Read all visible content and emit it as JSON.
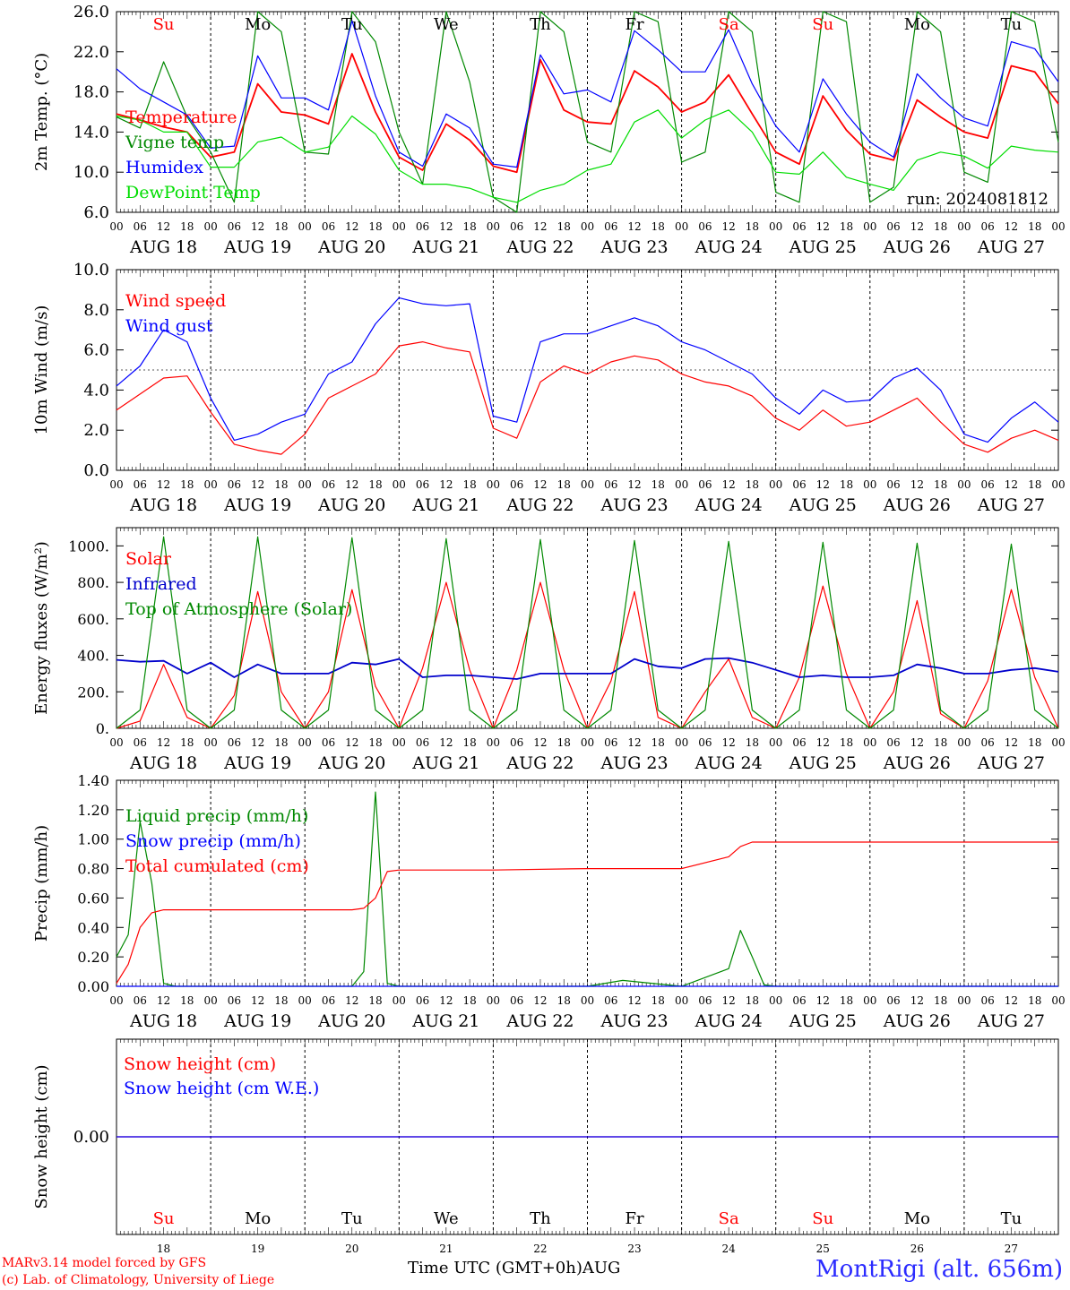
{
  "chart_data": [
    {
      "type": "line",
      "ylabel": "2m Temp. (°C)",
      "ylim": [
        6,
        26
      ],
      "yticks": [
        "6.0",
        "10.0",
        "14.0",
        "18.0",
        "22.0",
        "26.0"
      ],
      "legend": [
        "Temperature",
        "Vigne temp",
        "Humidex",
        "DewPoint Temp"
      ],
      "note": "run: 2024081812",
      "x_hours": [
        0,
        6,
        12,
        18,
        24,
        30,
        36,
        42,
        48,
        54,
        60,
        66,
        72,
        78,
        84,
        90,
        96,
        102,
        108,
        114,
        120,
        126,
        132,
        138,
        144,
        150,
        156,
        162,
        168,
        174,
        180,
        186,
        192,
        198,
        204,
        210,
        216,
        222,
        228,
        234,
        240
      ],
      "series": [
        {
          "name": "Temperature",
          "color": "#ff0000",
          "values": [
            15.8,
            15.2,
            14.5,
            14.0,
            11.5,
            12.0,
            18.8,
            16.0,
            15.7,
            14.8,
            21.8,
            16.0,
            11.5,
            10.2,
            14.8,
            13.2,
            10.6,
            10.0,
            21.2,
            16.2,
            15.0,
            14.8,
            20.1,
            18.5,
            16.0,
            17.0,
            19.7,
            15.8,
            12.0,
            10.8,
            17.6,
            14.2,
            11.8,
            11.2,
            17.2,
            15.5,
            14.0,
            13.4,
            20.6,
            20.0,
            16.8
          ]
        },
        {
          "name": "Vigne temp",
          "color": "#008800",
          "values": [
            15.5,
            14.4,
            21.0,
            15.5,
            12.0,
            7.0,
            26.0,
            24.0,
            12.0,
            11.8,
            26.0,
            23.0,
            14.0,
            8.8,
            26.0,
            19.0,
            7.5,
            6.0,
            26.0,
            24.0,
            13.0,
            12.0,
            26.0,
            25.0,
            11.0,
            12.0,
            26.0,
            24.0,
            8.0,
            7.0,
            26.0,
            25.0,
            7.0,
            8.5,
            26.0,
            24.0,
            10.0,
            9.0,
            26.0,
            25.0,
            13.0
          ]
        },
        {
          "name": "Humidex",
          "color": "#0000ff",
          "values": [
            20.3,
            18.3,
            17.0,
            15.7,
            12.4,
            12.6,
            21.6,
            17.4,
            17.4,
            16.2,
            25.1,
            17.6,
            12.0,
            10.6,
            15.8,
            14.4,
            10.8,
            10.5,
            21.7,
            17.8,
            18.2,
            17.0,
            24.1,
            22.2,
            20.0,
            20.0,
            24.2,
            18.8,
            14.6,
            12.0,
            19.3,
            15.8,
            13.0,
            11.5,
            19.8,
            17.4,
            15.4,
            14.6,
            23.0,
            22.3,
            19.0
          ]
        },
        {
          "name": "DewPoint Temp",
          "color": "#00dd00",
          "values": [
            15.6,
            15.2,
            14.0,
            14.0,
            10.5,
            10.5,
            13.0,
            13.5,
            12.0,
            12.5,
            15.6,
            13.8,
            10.2,
            8.8,
            8.8,
            8.4,
            7.5,
            7.0,
            8.2,
            8.8,
            10.2,
            10.8,
            15.0,
            16.2,
            13.4,
            15.2,
            16.2,
            14.0,
            10.0,
            9.8,
            12.0,
            9.5,
            8.8,
            8.2,
            11.2,
            12.0,
            11.6,
            10.4,
            12.6,
            12.2,
            12.0
          ]
        }
      ]
    },
    {
      "type": "line",
      "ylabel": "10m Wind (m/s)",
      "ylim": [
        0,
        10
      ],
      "yticks": [
        "0.0",
        "2.0",
        "4.0",
        "6.0",
        "8.0",
        "10.0"
      ],
      "legend": [
        "Wind speed",
        "Wind gust"
      ],
      "reference_line": 5.0,
      "x_hours": [
        0,
        6,
        12,
        18,
        24,
        30,
        36,
        42,
        48,
        54,
        60,
        66,
        72,
        78,
        84,
        90,
        96,
        102,
        108,
        114,
        120,
        126,
        132,
        138,
        144,
        150,
        156,
        162,
        168,
        174,
        180,
        186,
        192,
        198,
        204,
        210,
        216,
        222,
        228,
        234,
        240
      ],
      "series": [
        {
          "name": "Wind speed",
          "color": "#ff0000",
          "values": [
            3.0,
            3.8,
            4.6,
            4.7,
            2.9,
            1.3,
            1.0,
            0.8,
            1.8,
            3.6,
            4.2,
            4.8,
            6.2,
            6.4,
            6.1,
            5.9,
            2.1,
            1.6,
            4.4,
            5.2,
            4.8,
            5.4,
            5.7,
            5.5,
            4.8,
            4.4,
            4.2,
            3.7,
            2.6,
            2.0,
            3.0,
            2.2,
            2.4,
            3.0,
            3.6,
            2.4,
            1.3,
            0.9,
            1.6,
            2.0,
            1.5
          ]
        },
        {
          "name": "Wind gust",
          "color": "#0000ff",
          "values": [
            4.2,
            5.2,
            7.0,
            6.4,
            3.6,
            1.5,
            1.8,
            2.4,
            2.8,
            4.8,
            5.4,
            7.3,
            8.6,
            8.3,
            8.2,
            8.3,
            2.7,
            2.4,
            6.4,
            6.8,
            6.8,
            7.2,
            7.6,
            7.2,
            6.4,
            6.0,
            5.4,
            4.8,
            3.6,
            2.8,
            4.0,
            3.4,
            3.5,
            4.6,
            5.1,
            4.0,
            1.8,
            1.4,
            2.6,
            3.4,
            2.4
          ]
        }
      ]
    },
    {
      "type": "line",
      "ylabel": "Energy fluxes (W/m²)",
      "ylim": [
        0,
        1100
      ],
      "yticks": [
        "0.",
        "200.",
        "400.",
        "600.",
        "800.",
        "1000."
      ],
      "legend": [
        "Solar",
        "Infrared",
        "Top of Atmosphere (Solar)"
      ],
      "x_hours": [
        0,
        6,
        12,
        18,
        24,
        30,
        36,
        42,
        48,
        54,
        60,
        66,
        72,
        78,
        84,
        90,
        96,
        102,
        108,
        114,
        120,
        126,
        132,
        138,
        144,
        150,
        156,
        162,
        168,
        174,
        180,
        186,
        192,
        198,
        204,
        210,
        216,
        222,
        228,
        234,
        240
      ],
      "series": [
        {
          "name": "Solar",
          "color": "#ff0000",
          "values": [
            0,
            40,
            350,
            60,
            0,
            180,
            750,
            200,
            0,
            200,
            760,
            230,
            0,
            330,
            800,
            320,
            0,
            320,
            800,
            320,
            0,
            260,
            750,
            60,
            0,
            200,
            380,
            60,
            0,
            280,
            780,
            300,
            0,
            200,
            700,
            80,
            0,
            260,
            760,
            280,
            0
          ]
        },
        {
          "name": "Infrared",
          "color": "#0000cc",
          "values": [
            375,
            365,
            370,
            300,
            360,
            280,
            350,
            300,
            300,
            300,
            360,
            350,
            380,
            280,
            290,
            290,
            280,
            270,
            300,
            300,
            300,
            300,
            380,
            340,
            330,
            380,
            385,
            360,
            320,
            280,
            290,
            280,
            280,
            290,
            350,
            330,
            300,
            300,
            320,
            330,
            310
          ]
        },
        {
          "name": "Top of Atmosphere (Solar)",
          "color": "#008800",
          "values": [
            0,
            100,
            1050,
            100,
            0,
            100,
            1050,
            100,
            0,
            100,
            1045,
            100,
            0,
            100,
            1040,
            100,
            0,
            100,
            1035,
            100,
            0,
            100,
            1030,
            100,
            0,
            100,
            1025,
            100,
            0,
            100,
            1020,
            100,
            0,
            100,
            1015,
            100,
            0,
            100,
            1010,
            100,
            0
          ]
        }
      ]
    },
    {
      "type": "line",
      "ylabel": "Precip (mm/h)",
      "ylim": [
        0,
        1.4
      ],
      "yticks": [
        "0.00",
        "0.20",
        "0.40",
        "0.60",
        "0.80",
        "1.00",
        "1.20",
        "1.40"
      ],
      "legend": [
        "Liquid precip (mm/h)",
        "Snow precip (mm/h)",
        "Total cumulated (cm)"
      ],
      "x_hours": [
        0,
        3,
        6,
        9,
        12,
        15,
        18,
        24,
        48,
        60,
        63,
        66,
        69,
        72,
        84,
        96,
        120,
        129,
        144,
        156,
        159,
        162,
        165,
        168,
        180,
        240
      ],
      "series": [
        {
          "name": "Liquid precip (mm/h)",
          "color": "#008800",
          "values": [
            0.2,
            0.35,
            1.12,
            0.7,
            0.02,
            0,
            0,
            0,
            0,
            0,
            0.1,
            1.32,
            0.02,
            0,
            0,
            0,
            0,
            0.04,
            0,
            0.12,
            0.38,
            0.2,
            0.01,
            0,
            0,
            0
          ]
        },
        {
          "name": "Snow precip (mm/h)",
          "color": "#0000ff",
          "values": [
            0,
            0,
            0,
            0,
            0,
            0,
            0,
            0,
            0,
            0,
            0,
            0,
            0,
            0,
            0,
            0,
            0,
            0,
            0,
            0,
            0,
            0,
            0,
            0,
            0,
            0
          ]
        },
        {
          "name": "Total cumulated (cm)",
          "color": "#ff0000",
          "values": [
            0.02,
            0.15,
            0.4,
            0.5,
            0.52,
            0.52,
            0.52,
            0.52,
            0.52,
            0.52,
            0.53,
            0.6,
            0.78,
            0.79,
            0.79,
            0.79,
            0.8,
            0.8,
            0.8,
            0.88,
            0.95,
            0.98,
            0.98,
            0.98,
            0.98,
            0.98
          ]
        }
      ]
    },
    {
      "type": "line",
      "ylabel": "Snow height (cm)",
      "yticks": [
        "0.00"
      ],
      "legend": [
        "Snow height (cm)",
        "Snow height (cm W.E.)"
      ],
      "x_hours": [
        0,
        240
      ],
      "series": [
        {
          "name": "Snow height (cm)",
          "color": "#ff0000",
          "values": [
            0,
            0
          ]
        },
        {
          "name": "Snow height (cm W.E.)",
          "color": "#0000ff",
          "values": [
            0,
            0
          ]
        }
      ]
    }
  ],
  "x_axis": {
    "hour_labels": [
      "00",
      "06",
      "12",
      "18"
    ],
    "end_label": "00",
    "day_labels": [
      "AUG 18",
      "AUG 19",
      "AUG 20",
      "AUG 21",
      "AUG 22",
      "AUG 23",
      "AUG 24",
      "AUG 25",
      "AUG 26",
      "AUG 27"
    ],
    "weekdays": [
      "Su",
      "Mo",
      "Tu",
      "We",
      "Th",
      "Fr",
      "Sa",
      "Su",
      "Mo",
      "Tu"
    ],
    "weekday_colors": [
      "#ff0000",
      "#000000",
      "#000000",
      "#000000",
      "#000000",
      "#000000",
      "#ff0000",
      "#ff0000",
      "#000000",
      "#000000"
    ],
    "day_numbers": [
      "18",
      "19",
      "20",
      "21",
      "22",
      "23",
      "24",
      "25",
      "26",
      "27"
    ]
  },
  "footer": {
    "credit_line1": "MARv3.14 model forced by GFS",
    "credit_line2": "(c) Lab. of Climatology, University of Liege",
    "axis_title": "Time UTC (GMT+0h)",
    "month": "AUG",
    "station": "MontRigi (alt. 656m)"
  }
}
